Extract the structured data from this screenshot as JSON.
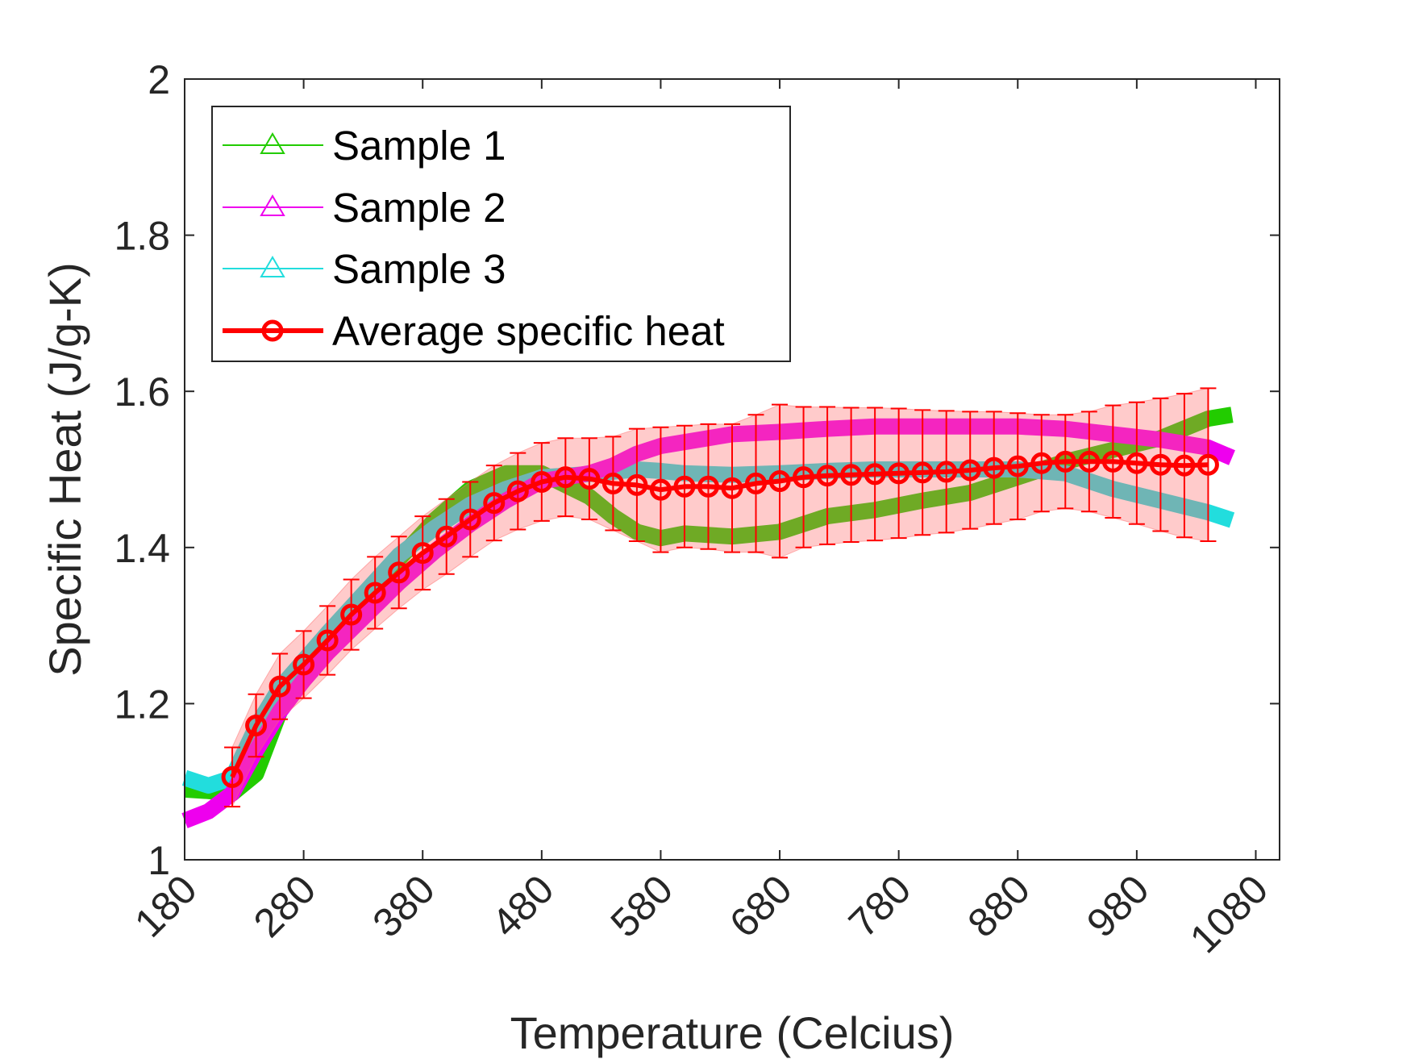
{
  "chart_data": {
    "type": "line",
    "xlabel": "Temperature (Celcius)",
    "ylabel": "Specific Heat (J/g-K)",
    "xlim": [
      180,
      1100
    ],
    "ylim": [
      1,
      2
    ],
    "xticks": [
      "180",
      "280",
      "380",
      "480",
      "580",
      "680",
      "780",
      "880",
      "980",
      "1080"
    ],
    "yticks": [
      "1",
      "1.2",
      "1.4",
      "1.6",
      "1.8",
      "2"
    ],
    "grid": false,
    "legend_position": "top-left",
    "series": [
      {
        "name": "Sample 1",
        "color": "#22cc00",
        "marker": "triangle",
        "x": [
          180,
          200,
          220,
          240,
          260,
          280,
          300,
          330,
          360,
          390,
          420,
          450,
          480,
          500,
          520,
          540,
          560,
          580,
          600,
          640,
          680,
          720,
          760,
          800,
          840,
          880,
          920,
          960,
          1000,
          1040,
          1060
        ],
        "y": [
          1.09,
          1.088,
          1.085,
          1.11,
          1.19,
          1.25,
          1.285,
          1.335,
          1.385,
          1.435,
          1.475,
          1.495,
          1.495,
          1.48,
          1.465,
          1.44,
          1.42,
          1.412,
          1.418,
          1.414,
          1.42,
          1.44,
          1.448,
          1.46,
          1.47,
          1.49,
          1.51,
          1.525,
          1.54,
          1.565,
          1.57
        ]
      },
      {
        "name": "Sample 2",
        "color": "#ee00ee",
        "marker": "triangle",
        "x": [
          180,
          200,
          220,
          240,
          260,
          280,
          300,
          330,
          360,
          390,
          420,
          450,
          480,
          500,
          520,
          540,
          560,
          580,
          600,
          640,
          680,
          720,
          760,
          800,
          840,
          880,
          920,
          960,
          1000,
          1040,
          1060
        ],
        "y": [
          1.05,
          1.062,
          1.085,
          1.14,
          1.19,
          1.23,
          1.265,
          1.31,
          1.355,
          1.395,
          1.43,
          1.46,
          1.485,
          1.49,
          1.495,
          1.505,
          1.52,
          1.53,
          1.535,
          1.545,
          1.548,
          1.552,
          1.555,
          1.555,
          1.555,
          1.555,
          1.552,
          1.545,
          1.538,
          1.528,
          1.515
        ]
      },
      {
        "name": "Sample 3",
        "color": "#22dddd",
        "marker": "triangle",
        "x": [
          180,
          200,
          220,
          240,
          260,
          280,
          300,
          330,
          360,
          390,
          420,
          450,
          480,
          500,
          520,
          540,
          560,
          580,
          600,
          640,
          680,
          720,
          760,
          800,
          840,
          880,
          920,
          960,
          1000,
          1040,
          1060
        ],
        "y": [
          1.105,
          1.095,
          1.105,
          1.17,
          1.22,
          1.255,
          1.29,
          1.34,
          1.39,
          1.425,
          1.455,
          1.475,
          1.49,
          1.492,
          1.494,
          1.497,
          1.5,
          1.498,
          1.495,
          1.493,
          1.495,
          1.498,
          1.5,
          1.5,
          1.5,
          1.5,
          1.495,
          1.475,
          1.46,
          1.445,
          1.435
        ]
      },
      {
        "name": "Average specific heat",
        "color": "#ff0000",
        "marker": "circle",
        "x": [
          220,
          240,
          260,
          280,
          300,
          320,
          340,
          360,
          380,
          400,
          420,
          440,
          460,
          480,
          500,
          520,
          540,
          560,
          580,
          600,
          620,
          640,
          660,
          680,
          700,
          720,
          740,
          760,
          780,
          800,
          820,
          840,
          860,
          880,
          900,
          920,
          940,
          960,
          980,
          1000,
          1020,
          1040
        ],
        "y": [
          1.106,
          1.172,
          1.222,
          1.25,
          1.281,
          1.314,
          1.342,
          1.368,
          1.393,
          1.414,
          1.436,
          1.457,
          1.472,
          1.484,
          1.49,
          1.488,
          1.482,
          1.48,
          1.474,
          1.478,
          1.478,
          1.476,
          1.482,
          1.485,
          1.49,
          1.492,
          1.493,
          1.494,
          1.495,
          1.496,
          1.497,
          1.499,
          1.502,
          1.504,
          1.508,
          1.51,
          1.51,
          1.51,
          1.508,
          1.506,
          1.505,
          1.506
        ],
        "error": [
          0.038,
          0.04,
          0.042,
          0.043,
          0.044,
          0.045,
          0.046,
          0.046,
          0.047,
          0.048,
          0.048,
          0.048,
          0.049,
          0.05,
          0.05,
          0.052,
          0.06,
          0.072,
          0.08,
          0.078,
          0.08,
          0.082,
          0.088,
          0.098,
          0.09,
          0.088,
          0.086,
          0.085,
          0.083,
          0.08,
          0.078,
          0.075,
          0.072,
          0.068,
          0.062,
          0.06,
          0.064,
          0.072,
          0.078,
          0.085,
          0.092,
          0.098
        ]
      }
    ]
  }
}
